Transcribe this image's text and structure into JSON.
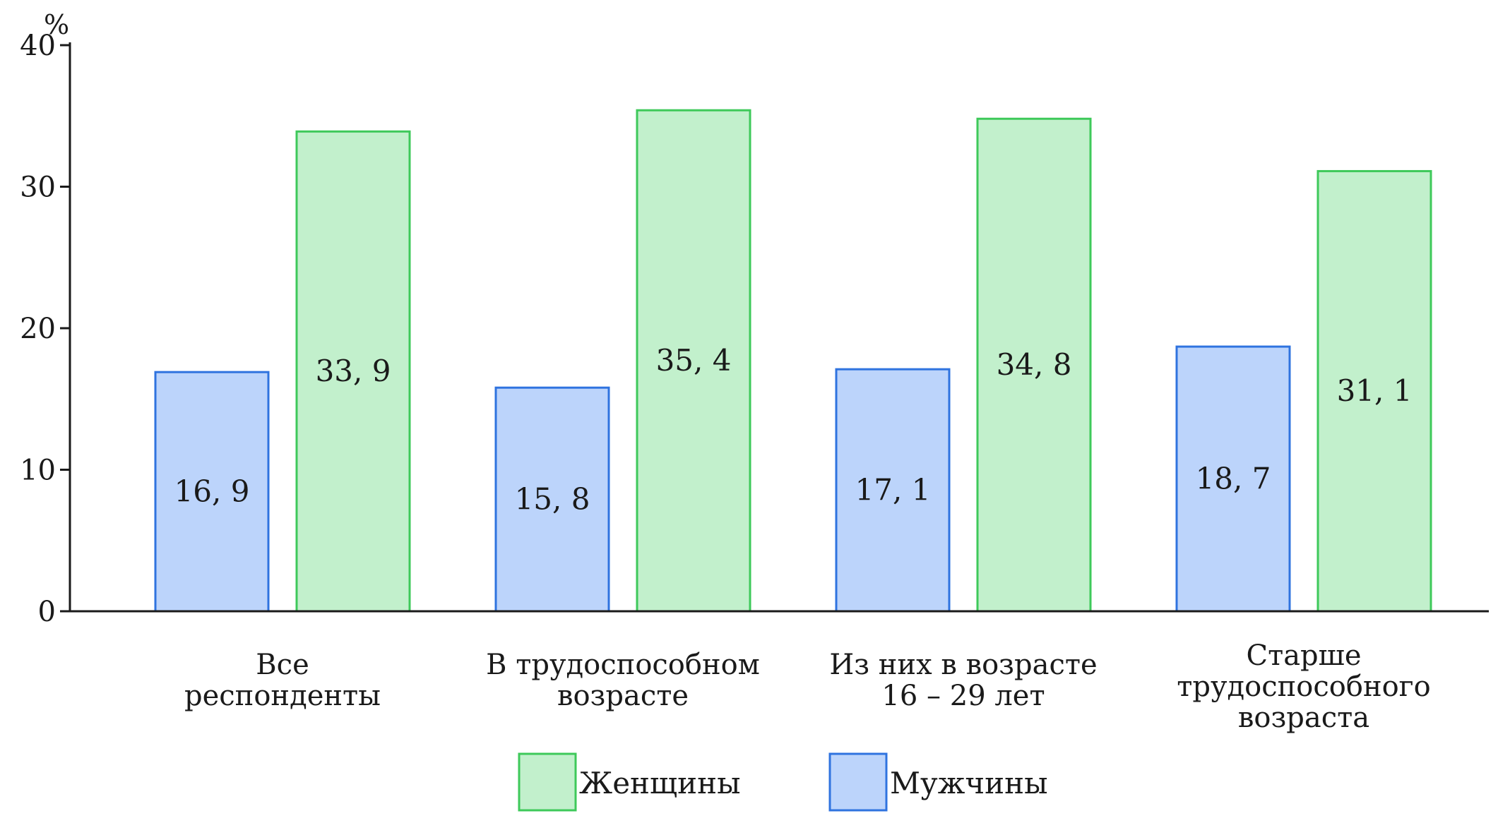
{
  "chart_data": {
    "type": "bar",
    "y_unit": "%",
    "ylim": [
      0,
      40
    ],
    "yticks": [
      0,
      10,
      20,
      30,
      40
    ],
    "ytick_labels": [
      "0",
      "10",
      "20",
      "30",
      "40"
    ],
    "grid": false,
    "legend_position": "bottom-center",
    "categories": [
      [
        "Все",
        "респонденты"
      ],
      [
        "В трудоспособном",
        "возрасте"
      ],
      [
        "Из них в возрасте",
        "16 – 29 лет"
      ],
      [
        "Старше",
        "трудоспособного",
        "возраста"
      ]
    ],
    "series": [
      {
        "name": "Мужчины",
        "color": "#bcd4fb",
        "stroke": "#2f73df",
        "values": [
          16.9,
          15.8,
          17.1,
          18.7
        ],
        "value_labels": [
          "16, 9",
          "15, 8",
          "17, 1",
          "18, 7"
        ]
      },
      {
        "name": "Женщины",
        "color": "#c2f0cc",
        "stroke": "#3ec95a",
        "values": [
          33.9,
          35.4,
          34.8,
          31.1
        ],
        "value_labels": [
          "33, 9",
          "35, 4",
          "34, 8",
          "31, 1"
        ]
      }
    ],
    "legend": [
      {
        "series": 1,
        "label": "Женщины"
      },
      {
        "series": 0,
        "label": "Мужчины"
      }
    ]
  }
}
